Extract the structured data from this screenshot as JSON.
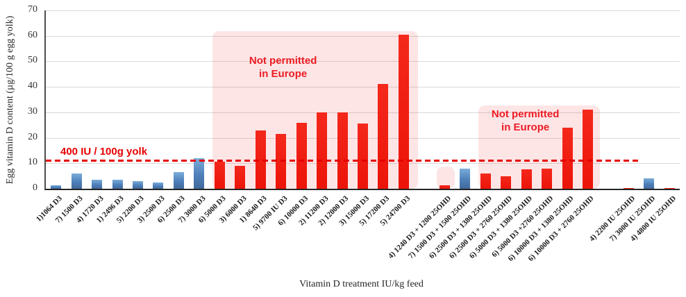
{
  "chart_data": {
    "type": "bar",
    "title": "",
    "xlabel": "Vitamin D treatment IU/kg feed",
    "ylabel": "Egg vitamin D content (µg/100 g egg yolk)",
    "ylim": [
      0,
      70
    ],
    "yticks": [
      0,
      10,
      20,
      30,
      40,
      50,
      60,
      70
    ],
    "grid": "horizontal",
    "legend": "none",
    "total_slots": 31,
    "bar_colors": {
      "blue": "#4d80ba",
      "red": "#ee1c14"
    },
    "categories": [
      "1)1064 D3",
      "7) 1500 D3",
      "4) 1720 D3",
      "1) 2496 D3",
      "5) 2200 D3",
      "3) 2500 D3",
      "6) 2500 D3",
      "7) 3000 D3",
      "6) 5000 D3",
      "3) 6000 D3",
      "1) 8640 D3",
      "5) 9700 IU D3",
      "6) 10000 D3",
      "2) 11200 D3",
      "2) 12000 D3",
      "3) 15000 D3",
      "5) 17200 D3",
      "5) 24700 D3",
      "4) 1240 D3 + 1200 25OHD",
      "7) 1500 D3 + 1500 25OHD",
      "6) 2500 D3 + 1380 25OHD",
      "6) 2500 D3 + 2760 25OHD",
      "6) 5000 D3 + 1380 25OHD",
      "6) 5000 D3 +2760 25OHD",
      "6) 10000 D3 + 1380 25OHD",
      "6) 10000 D3 + 2760 25OHD",
      "4) 2200 IU 25OHD",
      "7) 3000 IU 25OHD",
      "4) 4800 IU 25OHD"
    ],
    "bars": [
      {
        "label": "1)1064 D3",
        "value": 1.5,
        "color": "blue",
        "slot": 0
      },
      {
        "label": "7) 1500 D3",
        "value": 6,
        "color": "blue",
        "slot": 1
      },
      {
        "label": "4) 1720 D3",
        "value": 3.5,
        "color": "blue",
        "slot": 2
      },
      {
        "label": "1) 2496 D3",
        "value": 3.5,
        "color": "blue",
        "slot": 3
      },
      {
        "label": "5) 2200 D3",
        "value": 3,
        "color": "blue",
        "slot": 4
      },
      {
        "label": "3) 2500 D3",
        "value": 2.5,
        "color": "blue",
        "slot": 5
      },
      {
        "label": "6) 2500 D3",
        "value": 6.5,
        "color": "blue",
        "slot": 6
      },
      {
        "label": "7) 3000 D3",
        "value": 12,
        "color": "blue",
        "slot": 7
      },
      {
        "label": "6) 5000 D3",
        "value": 10.5,
        "color": "red",
        "slot": 8
      },
      {
        "label": "3) 6000 D3",
        "value": 9,
        "color": "red",
        "slot": 9
      },
      {
        "label": "1) 8640 D3",
        "value": 23,
        "color": "red",
        "slot": 10
      },
      {
        "label": "5) 9700 IU D3",
        "value": 21.5,
        "color": "red",
        "slot": 11
      },
      {
        "label": "6) 10000 D3",
        "value": 26,
        "color": "red",
        "slot": 12
      },
      {
        "label": "2) 11200 D3",
        "value": 30,
        "color": "red",
        "slot": 13
      },
      {
        "label": "2) 12000 D3",
        "value": 30,
        "color": "red",
        "slot": 14
      },
      {
        "label": "3) 15000 D3",
        "value": 25.5,
        "color": "red",
        "slot": 15
      },
      {
        "label": "5) 17200 D3",
        "value": 41,
        "color": "red",
        "slot": 16
      },
      {
        "label": "5) 24700 D3",
        "value": 60.5,
        "color": "red",
        "slot": 17
      },
      {
        "label": "4) 1240 D3 + 1200 25OHD",
        "value": 1.5,
        "color": "red",
        "slot": 19
      },
      {
        "label": "7) 1500 D3 + 1500 25OHD",
        "value": 8,
        "color": "blue",
        "slot": 20
      },
      {
        "label": "6) 2500 D3 + 1380 25OHD",
        "value": 6,
        "color": "red",
        "slot": 21
      },
      {
        "label": "6) 2500 D3 + 2760 25OHD",
        "value": 5,
        "color": "red",
        "slot": 22
      },
      {
        "label": "6) 5000 D3 + 1380 25OHD",
        "value": 7.5,
        "color": "red",
        "slot": 23
      },
      {
        "label": "6) 5000 D3 +2760 25OHD",
        "value": 8,
        "color": "red",
        "slot": 24
      },
      {
        "label": "6) 10000 D3 + 1380 25OHD",
        "value": 24,
        "color": "red",
        "slot": 25
      },
      {
        "label": "6) 10000 D3 + 2760 25OHD",
        "value": 31,
        "color": "red",
        "slot": 26
      },
      {
        "label": "4) 2200 IU 25OHD",
        "value": 0.3,
        "color": "red",
        "slot": 28
      },
      {
        "label": "7) 3000 IU 25OHD",
        "value": 4,
        "color": "blue",
        "slot": 29
      },
      {
        "label": "4) 4800 IU 25OHD",
        "value": 0.3,
        "color": "red",
        "slot": 30
      }
    ],
    "threshold": {
      "value": 11,
      "label": "400 IU / 100g yolk",
      "color": "#e60000",
      "line_end_slot": 28.95
    },
    "regions": [
      {
        "name": "not-permitted-region-1",
        "from_slot": 8.15,
        "to_slot": 18.2,
        "top_value": 61.8
      },
      {
        "name": "not-permitted-region-2",
        "from_slot": 21.15,
        "to_slot": 27.1,
        "top_value": 32.7
      },
      {
        "name": "not-permitted-region-3",
        "from_slot": 19.1,
        "to_slot": 20.0,
        "top_value": 8.7
      }
    ],
    "annotations": [
      {
        "text": "Not permitted\nin Europe",
        "slot": 11.6,
        "value": 47.7
      },
      {
        "text": "Not permitted\nin Europe",
        "slot": 23.45,
        "value": 26.7
      }
    ]
  }
}
